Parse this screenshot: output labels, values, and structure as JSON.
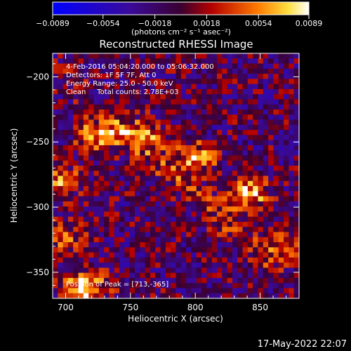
{
  "chart_data": {
    "type": "heatmap",
    "title": "Reconstructed RHESSI Image",
    "xlabel": "Heliocentric X (arcsec)",
    "ylabel": "Heliocentric Y (arcsec)",
    "xlim": [
      690,
      880
    ],
    "ylim": [
      -370,
      -182
    ],
    "xticks": [
      700,
      750,
      800,
      850
    ],
    "yticks": [
      -200,
      -250,
      -300,
      -350
    ],
    "colorbar": {
      "min": -0.0089,
      "max": 0.0089,
      "ticks": [
        -0.0089,
        -0.0054,
        -0.0018,
        0.0018,
        0.0054,
        0.0089
      ],
      "tick_labels": [
        "-0.0089",
        "-0.0054",
        "-0.0018",
        "0.0018",
        "0.0054",
        "0.0089"
      ],
      "label": "(photons cm⁻² s⁻¹ asec⁻²)"
    },
    "annotations": [
      "4-Feb-2016 05:04:20.000 to 05:06:32.000",
      "Detectors: 1F 5F 7F, Att 0",
      "Energy Range: 25.0 - 50.0 keV",
      "Clean     Total counts: 2.78E+03"
    ],
    "peak_label": "Position of Peak = [713,-365]",
    "sources": [
      {
        "x": 725,
        "y": -245,
        "peak": 0.0068
      },
      {
        "x": 695,
        "y": -280,
        "peak": 0.0055
      },
      {
        "x": 760,
        "y": -245,
        "peak": 0.0052
      },
      {
        "x": 800,
        "y": -262,
        "peak": 0.0065
      },
      {
        "x": 840,
        "y": -290,
        "peak": 0.008
      },
      {
        "x": 715,
        "y": -362,
        "peak": 0.0089
      },
      {
        "x": 700,
        "y": -325,
        "peak": 0.0042
      },
      {
        "x": 870,
        "y": -330,
        "peak": 0.0035
      }
    ]
  },
  "footer": {
    "timestamp": "17-May-2022 22:07"
  }
}
